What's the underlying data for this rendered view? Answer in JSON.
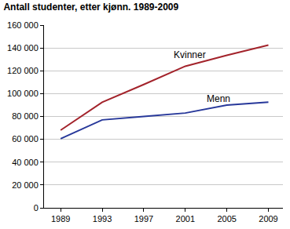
{
  "chart_data": {
    "type": "line",
    "title": "Antall studenter, etter kjønn. 1989-2009",
    "x": [
      1989,
      1993,
      1997,
      2001,
      2005,
      2009
    ],
    "series": [
      {
        "name": "Kvinner",
        "color": "#a3232b",
        "values": [
          68000,
          92500,
          108000,
          124000,
          133500,
          142500
        ]
      },
      {
        "name": "Menn",
        "color": "#27389a",
        "values": [
          60500,
          77000,
          80000,
          83000,
          90000,
          92500
        ]
      }
    ],
    "xlim": [
      1987.4,
      2010.4
    ],
    "xticks": [
      1989,
      1993,
      1997,
      2001,
      2005,
      2009
    ],
    "ylim": [
      0,
      160000
    ],
    "yticks": [
      0,
      {
        "value": 20000,
        "label": "20 000"
      },
      {
        "value": 40000,
        "label": "40 000"
      },
      {
        "value": 60000,
        "label": "60 000"
      },
      {
        "value": 80000,
        "label": "80 000"
      },
      {
        "value": 100000,
        "label": "100 000"
      },
      {
        "value": 120000,
        "label": "120 000"
      },
      {
        "value": 140000,
        "label": "140 000"
      },
      {
        "value": 160000,
        "label": "160 000"
      }
    ],
    "grid": true
  }
}
